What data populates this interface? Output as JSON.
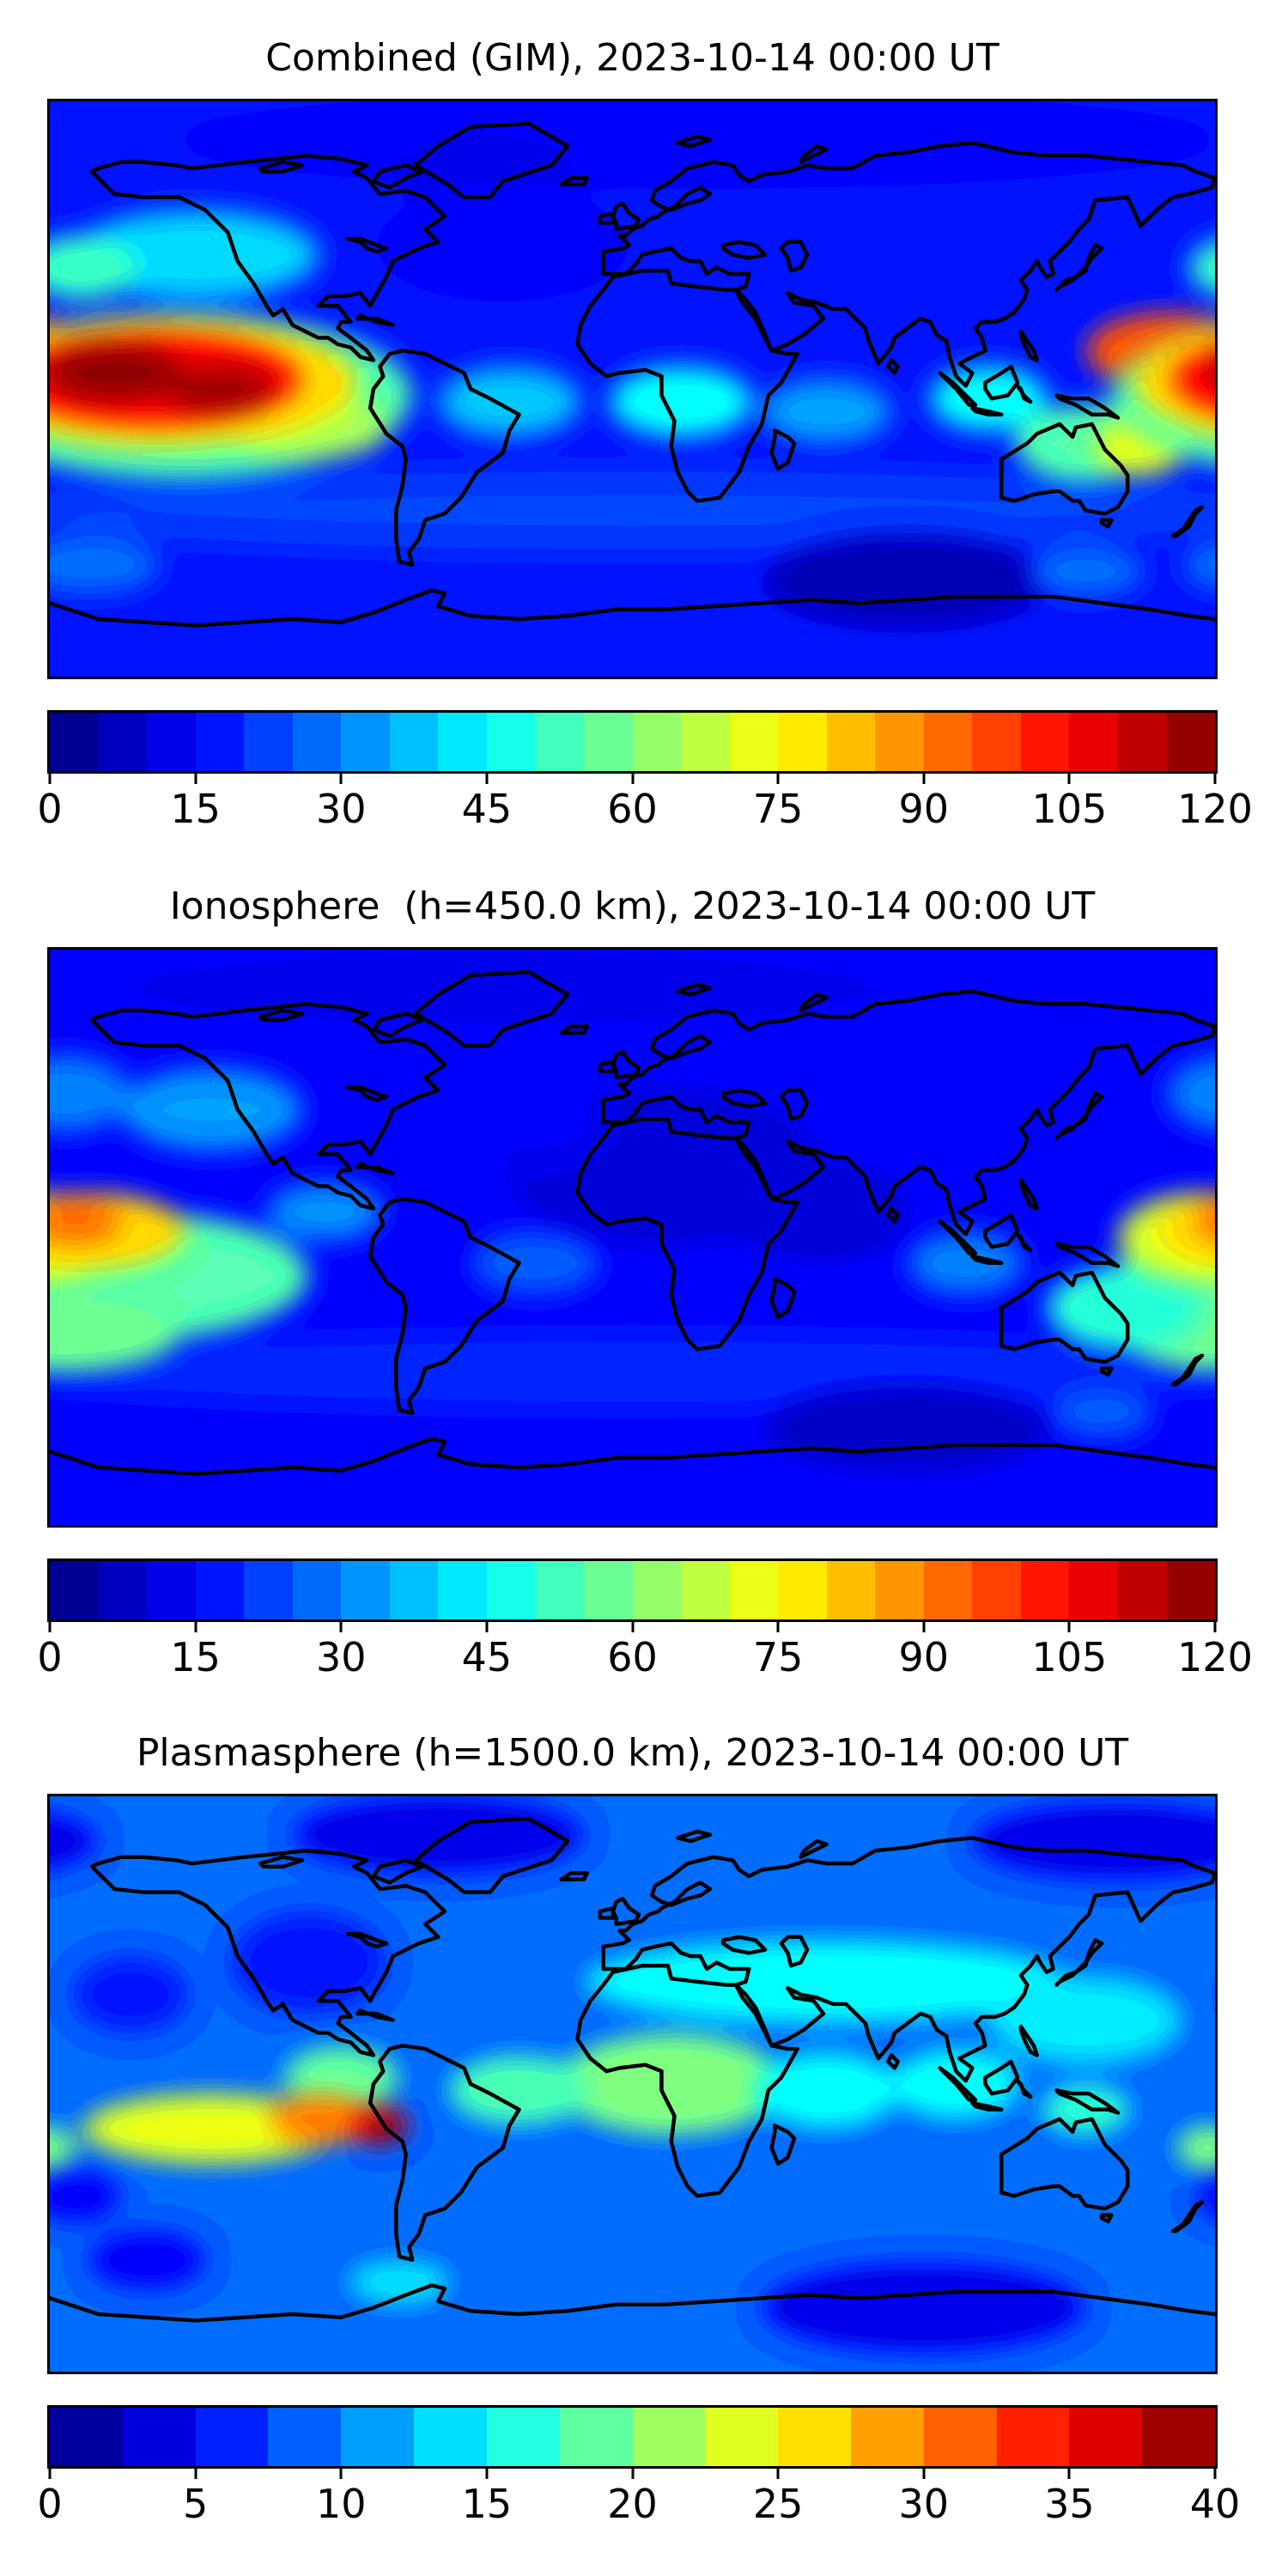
{
  "figure": {
    "background_color": "#ffffff",
    "text_color": "#000000",
    "colormap": "jet",
    "projection": "equirectangular",
    "lon_range": [
      -180,
      180
    ],
    "lat_range": [
      -90,
      90
    ]
  },
  "chart_data": [
    {
      "type": "heatmap",
      "subtype": "filled-contour-world-map",
      "title": "Combined (GIM), 2023-10-14 00:00 UT",
      "colormap": "jet",
      "colorbar": {
        "orientation": "horizontal",
        "vmin": 0,
        "vmax": 120,
        "level_step": 5,
        "n_segments": 24,
        "ticks": [
          0,
          15,
          30,
          45,
          60,
          75,
          90,
          105,
          120
        ]
      },
      "map": {
        "base_value": 18,
        "features": [
          {
            "name": "arctic-dim",
            "lon": 20,
            "lat": 78,
            "rx": 160,
            "ry": 14,
            "value": 14
          },
          {
            "name": "greenland-low",
            "lon": -45,
            "lat": 68,
            "rx": 28,
            "ry": 12,
            "value": 12
          },
          {
            "name": "north-atlantic-low",
            "lon": -40,
            "lat": 45,
            "rx": 40,
            "ry": 18,
            "value": 16
          },
          {
            "name": "south-midlat-band",
            "lon": 0,
            "lat": -38,
            "rx": 200,
            "ry": 13,
            "value": 23
          },
          {
            "name": "south-indian-low",
            "lon": 85,
            "lat": -60,
            "rx": 45,
            "ry": 15,
            "value": 6
          },
          {
            "name": "sw-pacific-cyan-spot",
            "lon": -168,
            "lat": -55,
            "rx": 22,
            "ry": 9,
            "value": 28
          },
          {
            "name": "s-australia-cyan-spot",
            "lon": 140,
            "lat": -57,
            "rx": 18,
            "ry": 8,
            "value": 28
          },
          {
            "name": "nw-america-cyan",
            "lon": -135,
            "lat": 42,
            "rx": 38,
            "ry": 14,
            "value": 40
          },
          {
            "name": "npac-green-patch",
            "lon": -170,
            "lat": 38,
            "rx": 18,
            "ry": 10,
            "value": 52
          },
          {
            "name": "eq-atlantic-cyan",
            "lon": -38,
            "lat": -4,
            "rx": 22,
            "ry": 11,
            "value": 38
          },
          {
            "name": "eq-africa-green",
            "lon": 15,
            "lat": -4,
            "rx": 22,
            "ry": 11,
            "value": 46
          },
          {
            "name": "indian-ocean-cyan",
            "lon": 60,
            "lat": -7,
            "rx": 20,
            "ry": 10,
            "value": 34
          },
          {
            "name": "se-asia-green",
            "lon": 110,
            "lat": -3,
            "rx": 18,
            "ry": 10,
            "value": 46
          },
          {
            "name": "australia-green",
            "lon": 140,
            "lat": -17,
            "rx": 22,
            "ry": 12,
            "value": 55
          },
          {
            "name": "east-australia-yellow",
            "lon": 157,
            "lat": -18,
            "rx": 14,
            "ry": 9,
            "value": 72
          },
          {
            "name": "wpac-orange",
            "lon": 166,
            "lat": 12,
            "rx": 26,
            "ry": 12,
            "value": 95
          },
          {
            "name": "wpac-orange-south",
            "lon": 174,
            "lat": -8,
            "rx": 18,
            "ry": 10,
            "value": 85
          },
          {
            "name": "epac-yellow-ring",
            "lon": -140,
            "lat": -2,
            "rx": 72,
            "ry": 26,
            "value": 55
          },
          {
            "name": "peru-yellow",
            "lon": -100,
            "lat": -12,
            "rx": 25,
            "ry": 10,
            "value": 65
          },
          {
            "name": "epac-orange-halo",
            "lon": -145,
            "lat": 2,
            "rx": 60,
            "ry": 20,
            "value": 80
          },
          {
            "name": "epac-red",
            "lon": -148,
            "lat": 3,
            "rx": 45,
            "ry": 14,
            "value": 105
          },
          {
            "name": "epac-core-west",
            "lon": -160,
            "lat": 5,
            "rx": 22,
            "ry": 9,
            "value": 118
          },
          {
            "name": "epac-core-east",
            "lon": -128,
            "lat": 0,
            "rx": 18,
            "ry": 8,
            "value": 116
          }
        ]
      }
    },
    {
      "type": "heatmap",
      "subtype": "filled-contour-world-map",
      "title": "Ionosphere  (h=450.0 km), 2023-10-14 00:00 UT",
      "colormap": "jet",
      "colorbar": {
        "orientation": "horizontal",
        "vmin": 0,
        "vmax": 120,
        "level_step": 5,
        "n_segments": 24,
        "ticks": [
          0,
          15,
          30,
          45,
          60,
          75,
          90,
          105,
          120
        ]
      },
      "map": {
        "base_value": 16,
        "features": [
          {
            "name": "arctic-dim",
            "lon": -40,
            "lat": 78,
            "rx": 120,
            "ry": 13,
            "value": 12
          },
          {
            "name": "europe-africa-low",
            "lon": 10,
            "lat": 22,
            "rx": 50,
            "ry": 26,
            "value": 10
          },
          {
            "name": "india-indian-ocean-low",
            "lon": 58,
            "lat": 8,
            "rx": 28,
            "ry": 16,
            "value": 9
          },
          {
            "name": "north-atlantic-low",
            "lon": -35,
            "lat": 35,
            "rx": 30,
            "ry": 15,
            "value": 13
          },
          {
            "name": "south-midlat-band",
            "lon": 0,
            "lat": -42,
            "rx": 200,
            "ry": 12,
            "value": 20
          },
          {
            "name": "south-indian-low",
            "lon": 85,
            "lat": -60,
            "rx": 45,
            "ry": 14,
            "value": 8
          },
          {
            "name": "npac-cyan-west",
            "lon": -175,
            "lat": 45,
            "rx": 20,
            "ry": 12,
            "value": 30
          },
          {
            "name": "nw-america-cyan",
            "lon": -130,
            "lat": 40,
            "rx": 28,
            "ry": 13,
            "value": 33
          },
          {
            "name": "central-america-cyan",
            "lon": -95,
            "lat": 8,
            "rx": 18,
            "ry": 9,
            "value": 32
          },
          {
            "name": "eq-atlantic-mild",
            "lon": -30,
            "lat": -8,
            "rx": 20,
            "ry": 10,
            "value": 26
          },
          {
            "name": "se-asia-cyan",
            "lon": 103,
            "lat": -8,
            "rx": 18,
            "ry": 10,
            "value": 30
          },
          {
            "name": "s-australia-cyan-spot",
            "lon": 145,
            "lat": -55,
            "rx": 16,
            "ry": 8,
            "value": 26
          },
          {
            "name": "epac-yellow-band",
            "lon": -155,
            "lat": -12,
            "rx": 55,
            "ry": 20,
            "value": 55
          },
          {
            "name": "sw-yellow-extension",
            "lon": -175,
            "lat": -30,
            "rx": 35,
            "ry": 12,
            "value": 58
          },
          {
            "name": "australia-green",
            "lon": 152,
            "lat": -22,
            "rx": 24,
            "ry": 13,
            "value": 50
          },
          {
            "name": "wpac-yellow",
            "lon": 176,
            "lat": 0,
            "rx": 26,
            "ry": 14,
            "value": 70
          },
          {
            "name": "epac-orange",
            "lon": -168,
            "lat": 2,
            "rx": 30,
            "ry": 12,
            "value": 80
          },
          {
            "name": "epac-orange-core",
            "lon": -172,
            "lat": 5,
            "rx": 14,
            "ry": 7,
            "value": 92
          },
          {
            "name": "south-america-dip",
            "lon": -64,
            "lat": -2,
            "rx": 13,
            "ry": 8,
            "value": 14
          },
          {
            "name": "south-america-dip-2",
            "lon": -62,
            "lat": -18,
            "rx": 10,
            "ry": 6,
            "value": 13
          }
        ]
      }
    },
    {
      "type": "heatmap",
      "subtype": "filled-contour-world-map",
      "title": "Plasmasphere (h=1500.0 km), 2023-10-14 00:00 UT",
      "colormap": "jet",
      "colorbar": {
        "orientation": "horizontal",
        "vmin": 0,
        "vmax": 40,
        "level_step": 2.5,
        "n_segments": 16,
        "ticks": [
          0,
          5,
          10,
          15,
          20,
          25,
          30,
          35,
          40
        ]
      },
      "map": {
        "base_value": 9,
        "features": [
          {
            "name": "arctic-navy-west",
            "lon": -60,
            "lat": 78,
            "rx": 45,
            "ry": 12,
            "value": 4
          },
          {
            "name": "arctic-navy-east",
            "lon": 150,
            "lat": 76,
            "rx": 45,
            "ry": 12,
            "value": 4
          },
          {
            "name": "north-america-low",
            "lon": -100,
            "lat": 38,
            "rx": 24,
            "ry": 16,
            "value": 6
          },
          {
            "name": "npac-low",
            "lon": -155,
            "lat": 28,
            "rx": 18,
            "ry": 12,
            "value": 6
          },
          {
            "name": "asia-midlat-cyan-band",
            "lon": 60,
            "lat": 32,
            "rx": 75,
            "ry": 13,
            "value": 15
          },
          {
            "name": "wpac-cyan",
            "lon": 140,
            "lat": 20,
            "rx": 30,
            "ry": 14,
            "value": 14
          },
          {
            "name": "africa-green",
            "lon": 12,
            "lat": 0,
            "rx": 35,
            "ry": 16,
            "value": 20
          },
          {
            "name": "eq-atlantic-green",
            "lon": -35,
            "lat": -2,
            "rx": 22,
            "ry": 11,
            "value": 18
          },
          {
            "name": "central-america-green",
            "lon": -90,
            "lat": 2,
            "rx": 18,
            "ry": 10,
            "value": 19
          },
          {
            "name": "indian-ocean-cyan",
            "lon": 60,
            "lat": -2,
            "rx": 22,
            "ry": 12,
            "value": 15
          },
          {
            "name": "se-asia-cyan",
            "lon": 100,
            "lat": 0,
            "rx": 20,
            "ry": 11,
            "value": 15
          },
          {
            "name": "new-guinea-green",
            "lon": 140,
            "lat": -8,
            "rx": 14,
            "ry": 8,
            "value": 17
          },
          {
            "name": "far-east-green-spot",
            "lon": 178,
            "lat": -20,
            "rx": 10,
            "ry": 7,
            "value": 20
          },
          {
            "name": "s-ocean-cyan-spot",
            "lon": -72,
            "lat": -62,
            "rx": 16,
            "ry": 7,
            "value": 14
          },
          {
            "name": "southern-navy",
            "lon": 90,
            "lat": -70,
            "rx": 50,
            "ry": 14,
            "value": 4
          },
          {
            "name": "sw-navy-1",
            "lon": -172,
            "lat": -35,
            "rx": 14,
            "ry": 8,
            "value": 5
          },
          {
            "name": "sw-navy-2",
            "lon": -150,
            "lat": -55,
            "rx": 18,
            "ry": 9,
            "value": 5
          },
          {
            "name": "wsa-yellow-band",
            "lon": -130,
            "lat": -14,
            "rx": 40,
            "ry": 11,
            "value": 24
          },
          {
            "name": "peru-orange",
            "lon": -96,
            "lat": -11,
            "rx": 16,
            "ry": 8,
            "value": 30
          },
          {
            "name": "peru-red",
            "lon": -78,
            "lat": -13,
            "rx": 9,
            "ry": 6,
            "value": 35
          },
          {
            "name": "peru-darkred-core",
            "lon": -76,
            "lat": -14,
            "rx": 5,
            "ry": 4,
            "value": 40
          }
        ]
      }
    }
  ]
}
